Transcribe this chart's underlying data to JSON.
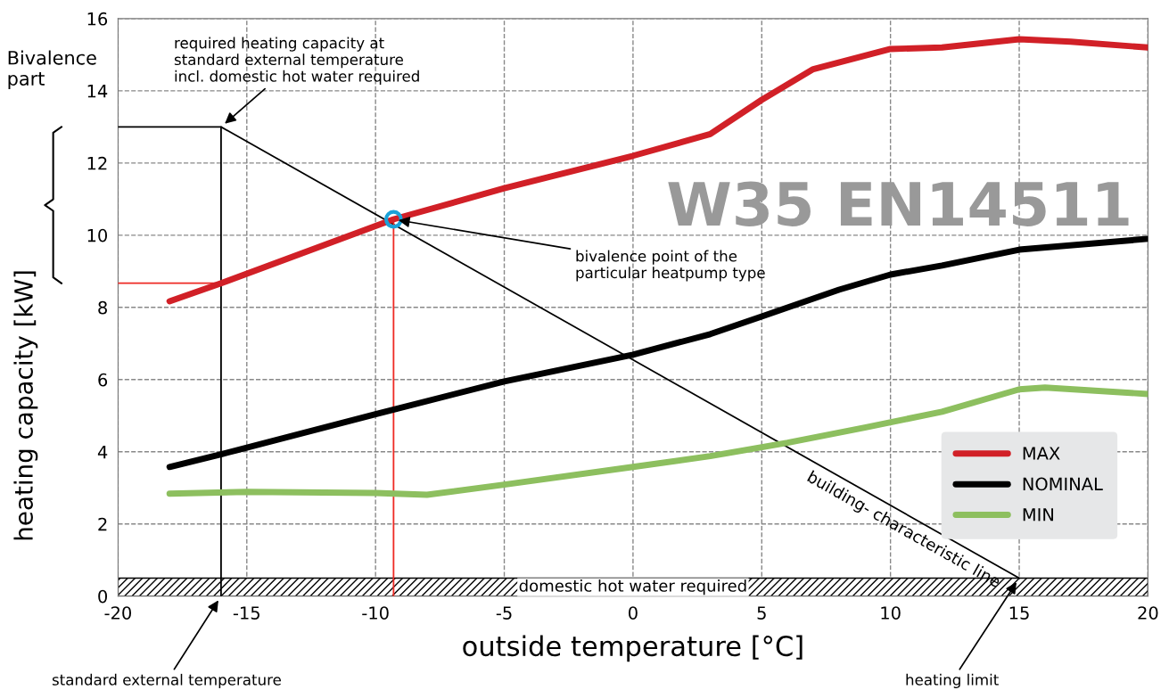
{
  "chart_data": {
    "type": "line",
    "xlabel": "outside temperature [°C]",
    "ylabel": "heating capacity [kW]",
    "xlim": [
      -20,
      20
    ],
    "ylim": [
      0,
      16
    ],
    "xticks": [
      -20,
      -15,
      -10,
      -5,
      0,
      5,
      10,
      15,
      20
    ],
    "yticks": [
      0,
      2,
      4,
      6,
      8,
      10,
      12,
      14,
      16
    ],
    "grid": true,
    "legend": "bottom right",
    "series": [
      {
        "name": "MAX",
        "color": "#d12027",
        "x": [
          -18,
          -16,
          -9.3,
          -5,
          0,
          3,
          5,
          7,
          10,
          12,
          15,
          17,
          20
        ],
        "values": [
          8.17,
          8.67,
          10.44,
          11.3,
          12.2,
          12.8,
          13.75,
          14.6,
          15.16,
          15.2,
          15.43,
          15.36,
          15.2
        ]
      },
      {
        "name": "NOMINAL",
        "color": "#000000",
        "x": [
          -18,
          -16,
          -10,
          -5,
          0,
          3,
          5,
          8,
          10,
          12,
          15,
          20
        ],
        "values": [
          3.58,
          3.93,
          5.04,
          5.95,
          6.69,
          7.26,
          7.75,
          8.49,
          8.91,
          9.16,
          9.6,
          9.9
        ]
      },
      {
        "name": "MIN",
        "color": "#8dbf5f",
        "x": [
          -18,
          -15,
          -10,
          -8,
          -5,
          0,
          3,
          6,
          9,
          12,
          15,
          16,
          20
        ],
        "values": [
          2.84,
          2.89,
          2.86,
          2.81,
          3.09,
          3.58,
          3.88,
          4.25,
          4.67,
          5.11,
          5.73,
          5.78,
          5.6
        ]
      },
      {
        "color": "#000000",
        "x": [
          -20,
          -16,
          15
        ],
        "values": [
          13,
          13,
          0.5
        ]
      },
      {
        "color": "#000000",
        "x": [
          -16,
          -16
        ],
        "values": [
          0,
          13
        ]
      },
      {
        "color": "#ee2a24",
        "x": [
          -20,
          -16
        ],
        "values": [
          8.67,
          8.67
        ]
      },
      {
        "color": "#ee2a24",
        "x": [
          -9.3,
          -9.3
        ],
        "values": [
          0,
          10.44
        ]
      },
      {
        "type": "scatter",
        "marker": "circle",
        "color": "#1ba1d8",
        "x": [
          -9.3
        ],
        "values": [
          10.44
        ]
      }
    ],
    "bands": [
      {
        "axis": "y",
        "from": 0,
        "to": 0.5,
        "label": "domestic hot water required"
      }
    ],
    "annotations": [
      {
        "text": "required heating capacity at\nstandard external temperature\nincl. domestic hot water required",
        "x": -16,
        "y": 13
      },
      {
        "text": "bivalence point of the\nparticular heatpump type",
        "x": -9.3,
        "y": 10.44
      },
      {
        "text": "standard external temperature",
        "x": -16,
        "y": 0
      },
      {
        "text": "heating limit",
        "x": 15,
        "y": 0.5
      },
      {
        "text": "building- characteristic line",
        "x": 10.5,
        "y": 2.31
      },
      "W35 EN14511",
      "Bivalence\npart"
    ]
  }
}
